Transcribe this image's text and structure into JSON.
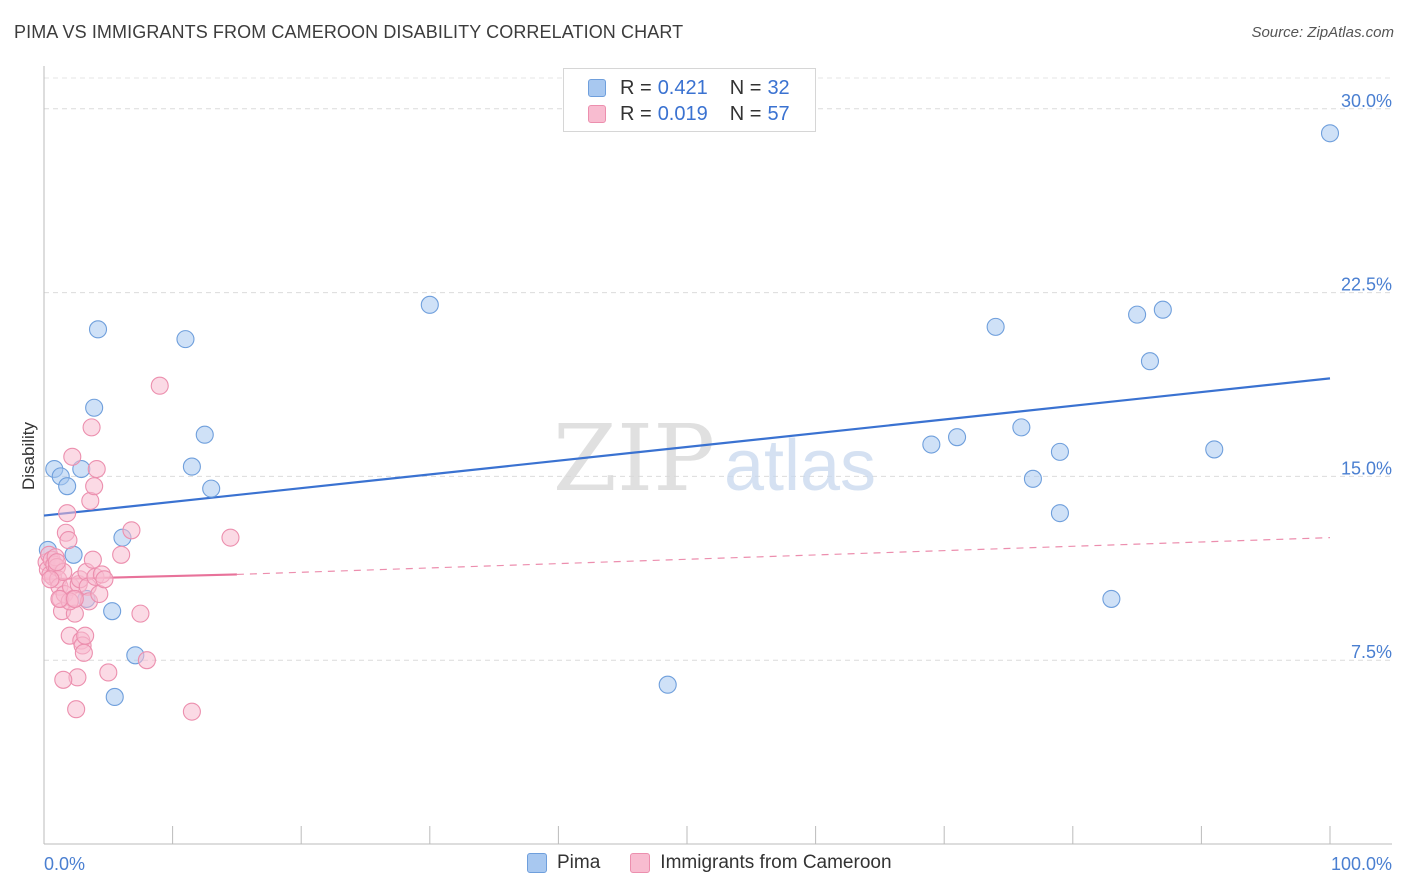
{
  "title": "PIMA VS IMMIGRANTS FROM CAMEROON DISABILITY CORRELATION CHART",
  "source": "Source: ZipAtlas.com",
  "watermark": {
    "zip": "ZIP",
    "atlas": "atlas"
  },
  "legend_top": [
    {
      "name": "Pima",
      "r_label": "R =",
      "r_value": "0.421",
      "n_label": "N =",
      "n_value": "32",
      "color": "#a8c8f0",
      "edge": "#6f9fdc"
    },
    {
      "name": "Immigrants from Cameroon",
      "r_label": "R =",
      "r_value": "0.019",
      "n_label": "N =",
      "n_value": "57",
      "color": "#f8bcd0",
      "edge": "#ec8fae"
    }
  ],
  "legend_bottom": [
    {
      "label": "Pima",
      "color": "#a8c8f0",
      "edge": "#6f9fdc"
    },
    {
      "label": "Immigrants from Cameroon",
      "color": "#f8bcd0",
      "edge": "#ec8fae"
    }
  ],
  "chart_data": {
    "type": "scatter",
    "title": "PIMA VS IMMIGRANTS FROM CAMEROON DISABILITY CORRELATION CHART",
    "xlabel": "",
    "ylabel": "Disability",
    "xlim": [
      0,
      100
    ],
    "ylim": [
      0,
      31.5
    ],
    "x_tick_labels": [
      "0.0%",
      "100.0%"
    ],
    "y_ticks": [
      7.5,
      15.0,
      22.5,
      30.0
    ],
    "y_tick_labels": [
      "7.5%",
      "15.0%",
      "22.5%",
      "30.0%"
    ],
    "grid": true,
    "series": [
      {
        "name": "Pima",
        "color": "#a8c8f0",
        "edge": "#6f9fdc",
        "trend": {
          "x": [
            0,
            100
          ],
          "y": [
            13.4,
            19.0
          ],
          "color": "#3a72d1",
          "style": "solid"
        },
        "points": [
          [
            0.3,
            12.0
          ],
          [
            0.8,
            15.3
          ],
          [
            1.3,
            15.0
          ],
          [
            1.8,
            14.6
          ],
          [
            2.3,
            11.8
          ],
          [
            2.9,
            15.3
          ],
          [
            3.3,
            10.0
          ],
          [
            3.9,
            17.8
          ],
          [
            4.2,
            21.0
          ],
          [
            5.3,
            9.5
          ],
          [
            5.5,
            6.0
          ],
          [
            6.1,
            12.5
          ],
          [
            7.1,
            7.7
          ],
          [
            11.0,
            20.6
          ],
          [
            11.5,
            15.4
          ],
          [
            12.5,
            16.7
          ],
          [
            13.0,
            14.5
          ],
          [
            30.0,
            22.0
          ],
          [
            48.5,
            6.5
          ],
          [
            69.0,
            16.3
          ],
          [
            71.0,
            16.6
          ],
          [
            74.0,
            21.1
          ],
          [
            76.0,
            17.0
          ],
          [
            76.9,
            14.9
          ],
          [
            79.0,
            16.0
          ],
          [
            79.0,
            13.5
          ],
          [
            83.0,
            10.0
          ],
          [
            85.0,
            21.6
          ],
          [
            86.0,
            19.7
          ],
          [
            87.0,
            21.8
          ],
          [
            91.0,
            16.1
          ],
          [
            100.0,
            29.0
          ]
        ]
      },
      {
        "name": "Immigrants from Cameroon",
        "color": "#f8bcd0",
        "edge": "#ec8fae",
        "trend": {
          "x": [
            0,
            15
          ],
          "y": [
            10.8,
            11.0
          ],
          "color": "#e8729a",
          "style": "solid",
          "extension": {
            "x": [
              15,
              100
            ],
            "y": [
              11.0,
              12.5
            ],
            "style": "dashed"
          }
        },
        "points": [
          [
            0.2,
            11.5
          ],
          [
            0.3,
            11.2
          ],
          [
            0.4,
            11.8
          ],
          [
            0.5,
            11.0
          ],
          [
            0.6,
            11.6
          ],
          [
            0.7,
            10.9
          ],
          [
            0.8,
            11.4
          ],
          [
            0.9,
            11.7
          ],
          [
            1.0,
            11.3
          ],
          [
            1.1,
            10.8
          ],
          [
            1.2,
            10.5
          ],
          [
            1.3,
            10.0
          ],
          [
            1.4,
            9.5
          ],
          [
            1.5,
            11.1
          ],
          [
            1.6,
            10.2
          ],
          [
            1.7,
            12.7
          ],
          [
            1.8,
            13.5
          ],
          [
            1.9,
            12.4
          ],
          [
            2.0,
            8.5
          ],
          [
            2.1,
            10.5
          ],
          [
            2.2,
            15.8
          ],
          [
            2.3,
            10.0
          ],
          [
            2.4,
            9.4
          ],
          [
            2.5,
            5.5
          ],
          [
            2.6,
            6.8
          ],
          [
            2.7,
            10.6
          ],
          [
            2.8,
            10.8
          ],
          [
            2.9,
            8.3
          ],
          [
            3.0,
            8.1
          ],
          [
            3.1,
            7.8
          ],
          [
            3.2,
            8.5
          ],
          [
            3.3,
            11.1
          ],
          [
            3.4,
            10.5
          ],
          [
            3.5,
            9.9
          ],
          [
            3.6,
            14.0
          ],
          [
            3.7,
            17.0
          ],
          [
            3.8,
            11.6
          ],
          [
            3.9,
            14.6
          ],
          [
            4.0,
            10.9
          ],
          [
            4.1,
            15.3
          ],
          [
            4.3,
            10.2
          ],
          [
            4.5,
            11.0
          ],
          [
            4.7,
            10.8
          ],
          [
            5.0,
            7.0
          ],
          [
            6.0,
            11.8
          ],
          [
            6.8,
            12.8
          ],
          [
            7.5,
            9.4
          ],
          [
            8.0,
            7.5
          ],
          [
            9.0,
            18.7
          ],
          [
            11.5,
            5.4
          ],
          [
            14.5,
            12.5
          ],
          [
            1.5,
            6.7
          ],
          [
            2.0,
            9.9
          ],
          [
            0.5,
            10.8
          ],
          [
            1.0,
            11.5
          ],
          [
            1.2,
            10.0
          ],
          [
            2.4,
            10.0
          ]
        ]
      }
    ]
  }
}
